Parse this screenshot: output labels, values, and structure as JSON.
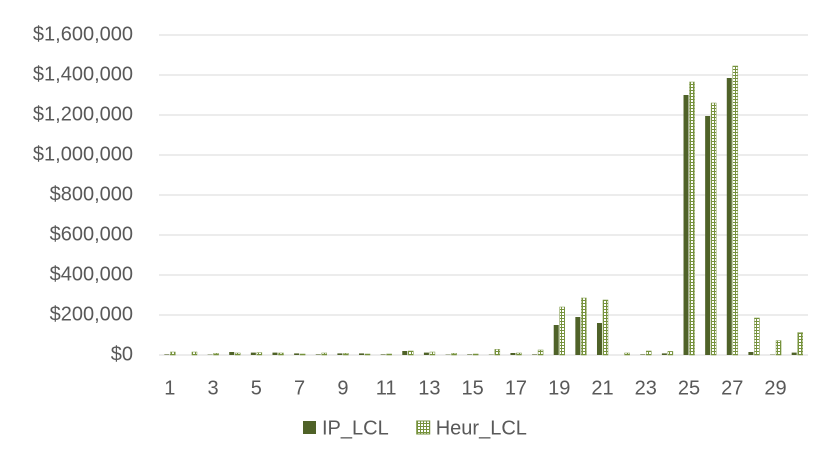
{
  "chart_data": {
    "type": "bar",
    "categories": [
      "1",
      null,
      "3",
      null,
      "5",
      null,
      "7",
      null,
      "9",
      null,
      "11",
      null,
      "13",
      null,
      "15",
      null,
      "17",
      null,
      "19",
      null,
      "21",
      null,
      "23",
      null,
      "25",
      null,
      "27",
      null,
      "29",
      null
    ],
    "series": [
      {
        "name": "IP_LCL",
        "color": "#4f6228",
        "pattern": "solid",
        "values": [
          3000,
          0,
          2000,
          15000,
          12000,
          12000,
          8000,
          3000,
          8000,
          8000,
          3000,
          20000,
          12000,
          2000,
          3000,
          2000,
          10000,
          3000,
          150000,
          190000,
          160000,
          0,
          3000,
          8000,
          1300000,
          1195000,
          1385000,
          15000,
          2000,
          12000
        ]
      },
      {
        "name": "Heur_LCL",
        "color": "#76923c",
        "pattern": "grid",
        "values": [
          15000,
          15000,
          8000,
          10000,
          12000,
          10000,
          5000,
          10000,
          8000,
          5000,
          5000,
          20000,
          15000,
          8000,
          5000,
          28000,
          10000,
          25000,
          240000,
          285000,
          275000,
          10000,
          20000,
          18000,
          1365000,
          1260000,
          1445000,
          185000,
          72000,
          112000
        ]
      }
    ],
    "ylim": [
      0,
      1600000
    ],
    "yticks": [
      {
        "value": 0,
        "label": "$0"
      },
      {
        "value": 200000,
        "label": "$200,000"
      },
      {
        "value": 400000,
        "label": "$400,000"
      },
      {
        "value": 600000,
        "label": "$600,000"
      },
      {
        "value": 800000,
        "label": "$800,000"
      },
      {
        "value": 1000000,
        "label": "$1,000,000"
      },
      {
        "value": 1200000,
        "label": "$1,200,000"
      },
      {
        "value": 1400000,
        "label": "$1,400,000"
      },
      {
        "value": 1600000,
        "label": "$1,600,000"
      }
    ],
    "grid": true,
    "legend": "bottom"
  }
}
